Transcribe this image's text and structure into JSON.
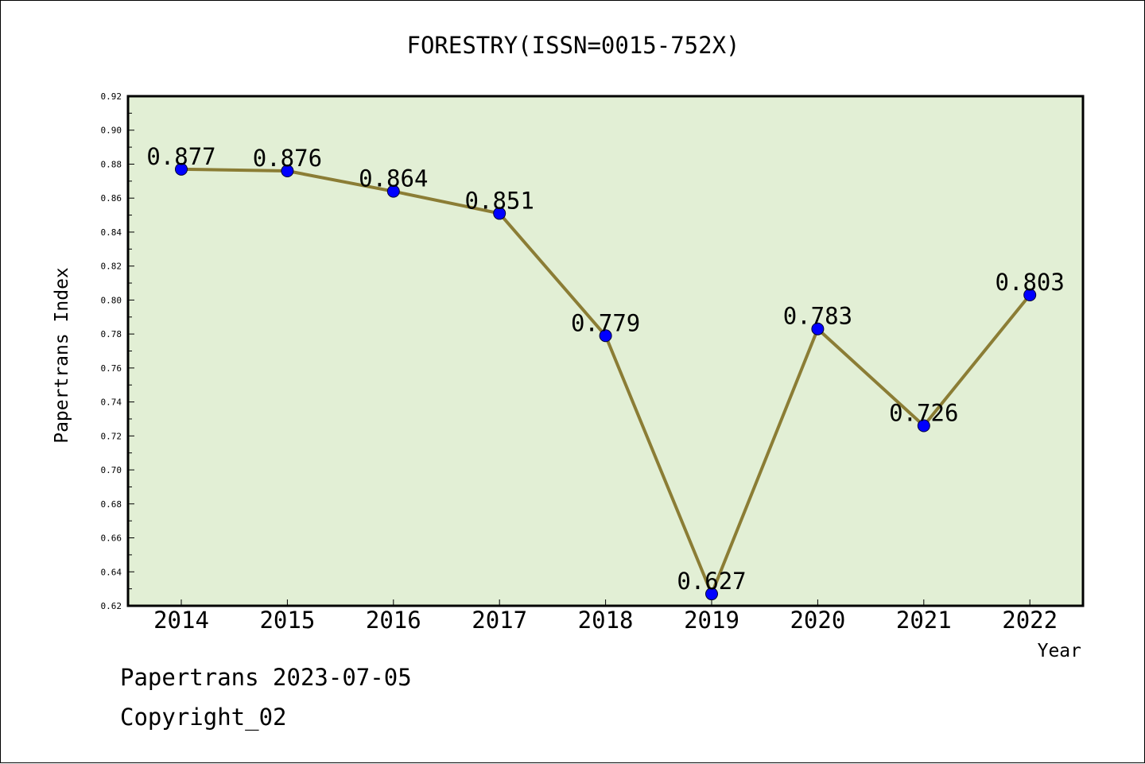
{
  "chart_data": {
    "type": "line",
    "title": "FORESTRY(ISSN=0015-752X)",
    "xlabel": "Year",
    "ylabel": "Papertrans Index",
    "categories": [
      "2014",
      "2015",
      "2016",
      "2017",
      "2018",
      "2019",
      "2020",
      "2021",
      "2022"
    ],
    "series": [
      {
        "values": [
          0.877,
          0.876,
          0.864,
          0.851,
          0.779,
          0.627,
          0.783,
          0.726,
          0.803
        ],
        "labels": [
          "0.877",
          "0.876",
          "0.864",
          "0.851",
          "0.779",
          "0.627",
          "0.783",
          "0.726",
          "0.803"
        ]
      }
    ],
    "ylim": [
      0.62,
      0.92
    ],
    "yticks": [
      "0.62",
      "0.64",
      "0.66",
      "0.68",
      "0.70",
      "0.72",
      "0.74",
      "0.76",
      "0.78",
      "0.80",
      "0.82",
      "0.84",
      "0.86",
      "0.88",
      "0.90",
      "0.92"
    ],
    "grid": false,
    "colors": {
      "plot_background": "#e2efd5",
      "line": "#8b7d35",
      "marker": "#0000ff"
    }
  },
  "footer": {
    "line1": "Papertrans 2023-07-05",
    "line2": "Copyright_02"
  }
}
